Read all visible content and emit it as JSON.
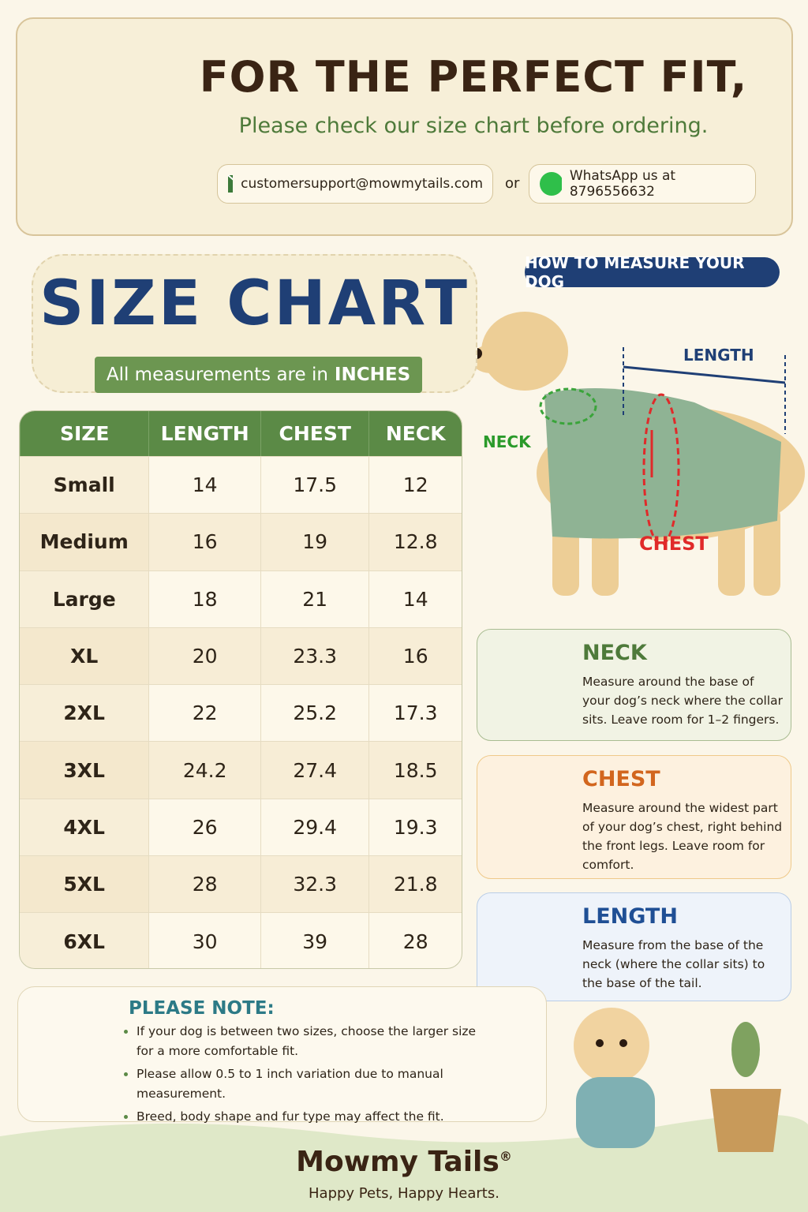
{
  "header": {
    "title": "FOR THE PERFECT FIT,",
    "subtitle": "Please check our size chart before ordering.",
    "email": "customersupport@mowmytails.com",
    "or": "or",
    "whatsapp": "WhatsApp us at 8796556632"
  },
  "size_chart": {
    "title": "SIZE CHART",
    "subtitle": "All measurements are in",
    "unit": "INCHES"
  },
  "table": {
    "headers": [
      "SIZE",
      "LENGTH",
      "CHEST",
      "NECK"
    ],
    "rows": [
      [
        "Small",
        14,
        17.5,
        12
      ],
      [
        "Medium",
        16,
        19,
        12.8
      ],
      [
        "Large",
        18,
        21,
        14
      ],
      [
        "XL",
        20,
        23.3,
        16
      ],
      [
        "2XL",
        22,
        25.2,
        17.3
      ],
      [
        "3XL",
        24.2,
        27.4,
        18.5
      ],
      [
        "4XL",
        26,
        29.4,
        19.3
      ],
      [
        "5XL",
        28,
        32.3,
        21.8
      ],
      [
        "6XL",
        30,
        39,
        28
      ]
    ]
  },
  "measure": {
    "title": "HOW TO MEASURE YOUR DOG",
    "diagram": {
      "neck": "NECK",
      "length": "LENGTH",
      "chest": "CHEST"
    },
    "tips": [
      {
        "title": "NECK",
        "text": "Measure around the base of your dog’s neck where the collar sits. Leave room for 1–2 fingers."
      },
      {
        "title": "CHEST",
        "text": "Measure around the widest part of your dog’s chest, right behind the front legs. Leave room for comfort."
      },
      {
        "title": "LENGTH",
        "text": "Measure from the base of the neck (where the collar sits) to the base of the tail."
      }
    ]
  },
  "note": {
    "title": "PLEASE NOTE:",
    "items": [
      "If your dog is between two sizes, choose the larger size for a more comfortable fit.",
      "Please allow 0.5 to 1 inch variation due to manual measurement.",
      "Breed, body shape and fur type may affect the fit."
    ]
  },
  "brand": {
    "name": "Mowmy Tails",
    "mark": "®",
    "tagline": "Happy Pets, Happy Hearts."
  }
}
